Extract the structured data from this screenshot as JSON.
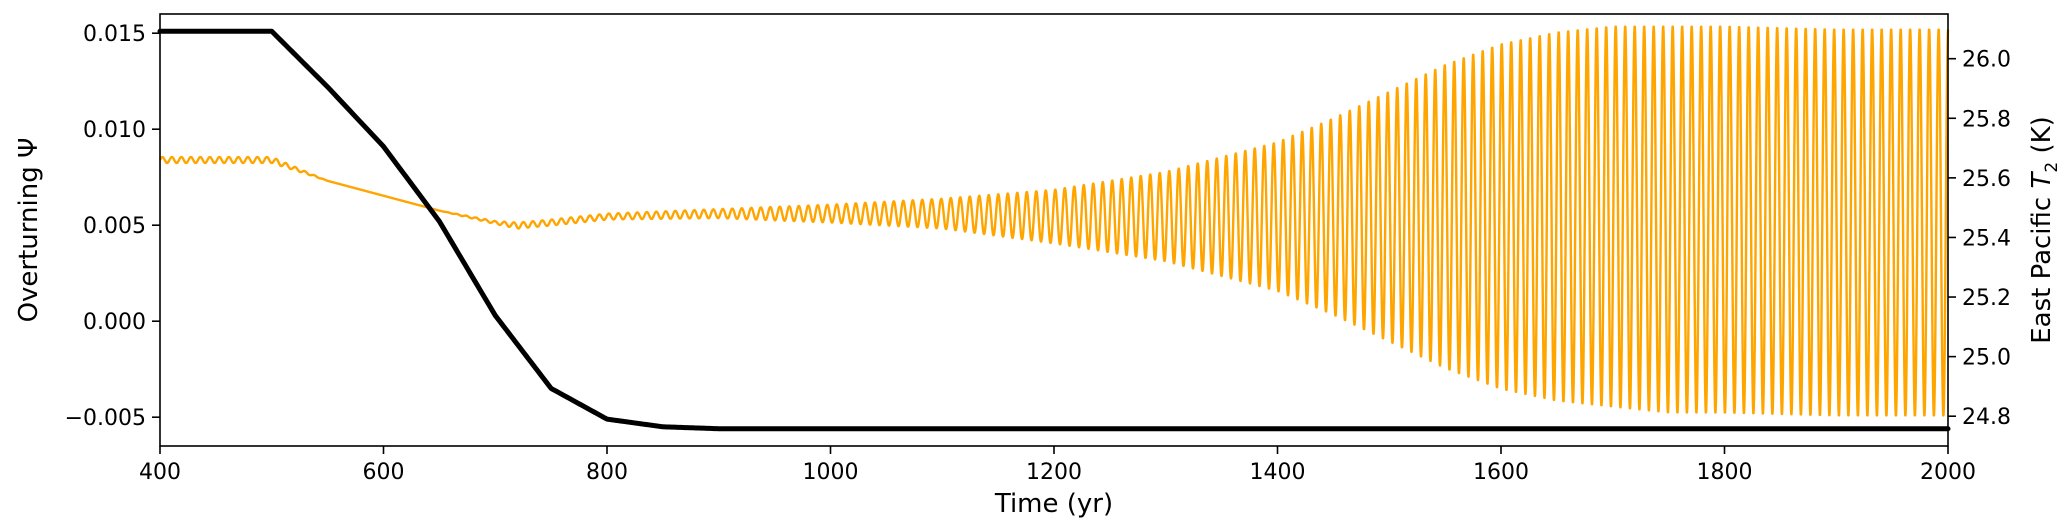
{
  "chart_data": {
    "type": "line",
    "title": "",
    "xlabel": "Time (yr)",
    "ylabel_left": "Overturning Ψ",
    "ylabel_right_prefix": "East Pacific ",
    "ylabel_right_var": "T",
    "ylabel_right_sub": "2",
    "ylabel_right_suffix": " (K)",
    "xlim": [
      400,
      2000
    ],
    "ylim_left": [
      -0.0065,
      0.016
    ],
    "ylim_right": [
      24.7,
      26.15
    ],
    "x_ticks": [
      400,
      600,
      800,
      1000,
      1200,
      1400,
      1600,
      1800,
      2000
    ],
    "x_tick_labels": [
      "400",
      "600",
      "800",
      "1000",
      "1200",
      "1400",
      "1600",
      "1800",
      "2000"
    ],
    "y_left_ticks": [
      -0.005,
      0.0,
      0.005,
      0.01,
      0.015
    ],
    "y_left_tick_labels": [
      "−0.005",
      "0.000",
      "0.005",
      "0.010",
      "0.015"
    ],
    "y_right_ticks": [
      24.8,
      25.0,
      25.2,
      25.4,
      25.6,
      25.8,
      26.0
    ],
    "y_right_tick_labels": [
      "24.8",
      "25.0",
      "25.2",
      "25.4",
      "25.6",
      "25.8",
      "26.0"
    ],
    "grid": false,
    "legend": "none",
    "series": [
      {
        "axis": "left",
        "color": "#000000",
        "x": [
          400,
          500,
          550,
          600,
          650,
          700,
          750,
          800,
          850,
          900,
          1000,
          1200,
          1400,
          1600,
          1800,
          2000
        ],
        "y": [
          0.0151,
          0.0151,
          0.0122,
          0.0091,
          0.0052,
          0.0003,
          -0.0035,
          -0.0051,
          -0.0055,
          -0.0056,
          -0.0056,
          -0.0056,
          -0.0056,
          -0.0056,
          -0.0056,
          -0.0056
        ]
      },
      {
        "axis": "right",
        "color": "#ffa500",
        "x": [
          400,
          500,
          550,
          600,
          650,
          700,
          720,
          750,
          800,
          900,
          1000,
          1100,
          1200,
          1300,
          1400,
          1450,
          1500,
          1550,
          1600,
          1650,
          1700,
          1750,
          1800,
          1900,
          2000
        ],
        "mean": [
          25.66,
          25.66,
          25.59,
          25.54,
          25.49,
          25.45,
          25.44,
          25.45,
          25.47,
          25.48,
          25.48,
          25.48,
          25.47,
          25.47,
          25.47,
          25.47,
          25.47,
          25.47,
          25.47,
          25.47,
          25.47,
          25.46,
          25.46,
          25.45,
          25.45
        ],
        "amplitude": [
          0.01,
          0.01,
          0.0,
          0.0,
          0.0,
          0.005,
          0.01,
          0.01,
          0.01,
          0.015,
          0.03,
          0.05,
          0.09,
          0.15,
          0.25,
          0.33,
          0.42,
          0.51,
          0.58,
          0.62,
          0.64,
          0.65,
          0.65,
          0.65,
          0.65
        ],
        "oscillation_period_yr": 8.5
      }
    ]
  }
}
